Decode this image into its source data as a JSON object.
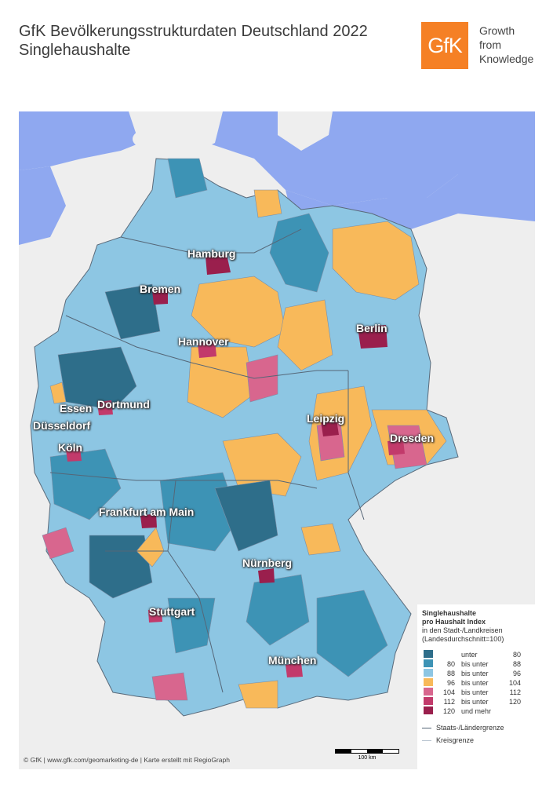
{
  "title": {
    "line1": "GfK Bevölkerungsstrukturdaten Deutschland 2022",
    "line2": "Singlehaushalte"
  },
  "logo": {
    "mark": "GfK",
    "tagline": [
      "Growth",
      "from",
      "Knowledge"
    ],
    "color": "#f58025"
  },
  "cities": [
    "Hamburg",
    "Bremen",
    "Hannover",
    "Berlin",
    "Essen",
    "Dortmund",
    "Düsseldorf",
    "Köln",
    "Leipzig",
    "Dresden",
    "Frankfurt am Main",
    "Nürnberg",
    "Stuttgart",
    "München"
  ],
  "legend": {
    "title1": "Singlehaushalte",
    "title2": "pro Haushalt Index",
    "sub1": "in den Stadt-/Landkreisen",
    "sub2": "(Landesdurchschnitt=100)",
    "classes": [
      {
        "from": "",
        "word": "unter",
        "to": "80",
        "color": "#2e6e8a"
      },
      {
        "from": "80",
        "word": "bis unter",
        "to": "88",
        "color": "#3d93b5"
      },
      {
        "from": "88",
        "word": "bis unter",
        "to": "96",
        "color": "#8dc6e3"
      },
      {
        "from": "96",
        "word": "bis unter",
        "to": "104",
        "color": "#f8b95a"
      },
      {
        "from": "104",
        "word": "bis unter",
        "to": "112",
        "color": "#d8668e"
      },
      {
        "from": "112",
        "word": "bis unter",
        "to": "120",
        "color": "#c23a6b"
      },
      {
        "from": "120",
        "word": "und mehr",
        "to": "",
        "color": "#9a1f4d"
      }
    ],
    "border_state": "Staats-/Ländergrenze",
    "border_district": "Kreisgrenze"
  },
  "scale_label": "100 km",
  "footer": "© GfK | www.gfk.com/geomarketing-de | Karte erstellt mit RegioGraph",
  "colors": {
    "sea": "#8fa8f0",
    "neighbor": "#eeeeee"
  }
}
